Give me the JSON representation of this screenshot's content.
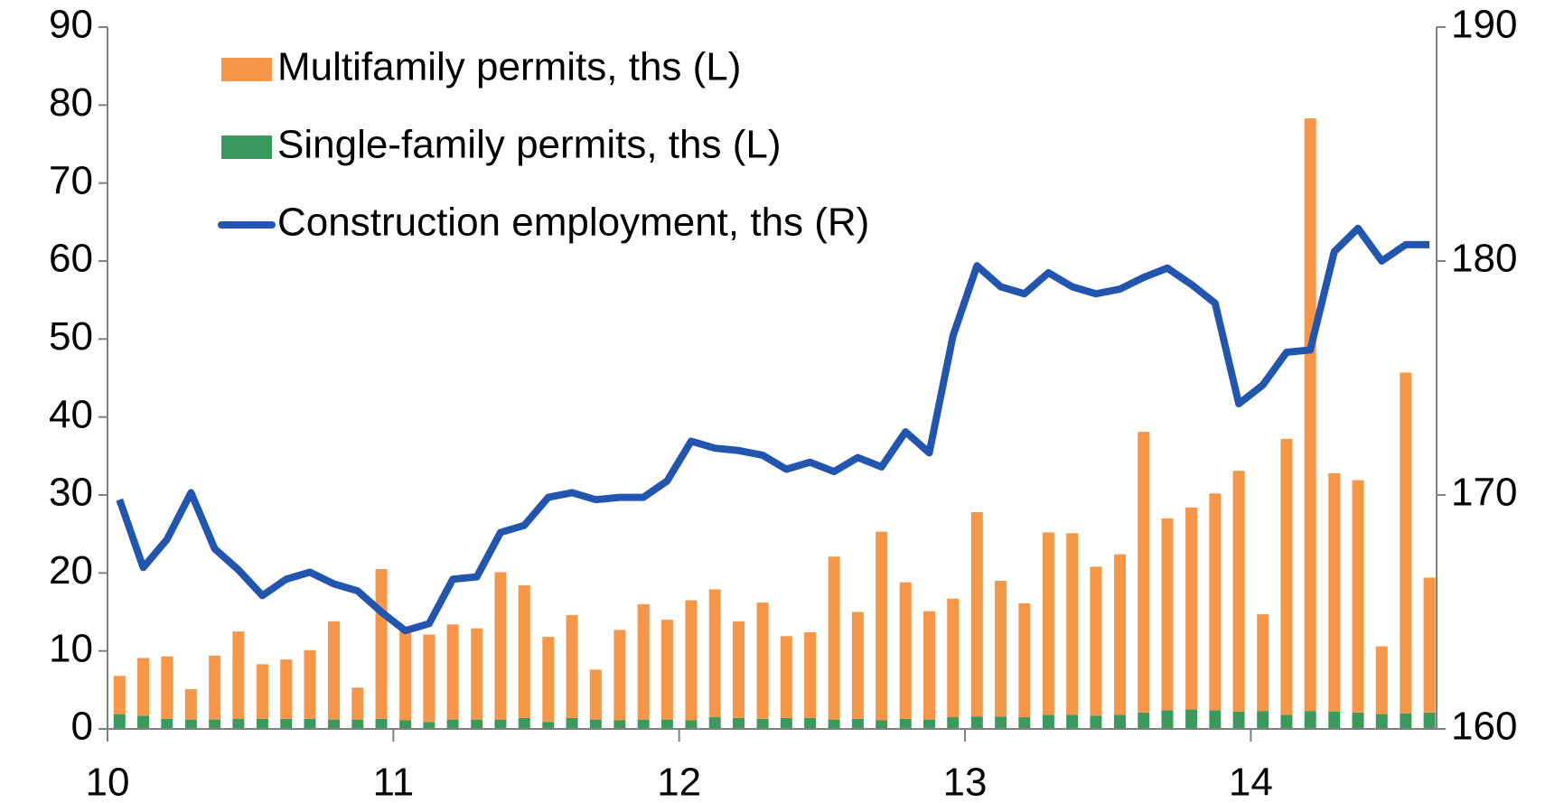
{
  "chart_data": {
    "type": "bar-line",
    "x": [
      10.042,
      10.125,
      10.208,
      10.292,
      10.375,
      10.458,
      10.542,
      10.625,
      10.708,
      10.792,
      10.875,
      10.958,
      11.042,
      11.125,
      11.208,
      11.292,
      11.375,
      11.458,
      11.542,
      11.625,
      11.708,
      11.792,
      11.875,
      11.958,
      12.042,
      12.125,
      12.208,
      12.292,
      12.375,
      12.458,
      12.542,
      12.625,
      12.708,
      12.792,
      12.875,
      12.958,
      13.042,
      13.125,
      13.208,
      13.292,
      13.375,
      13.458,
      13.542,
      13.625,
      13.708,
      13.792,
      13.875,
      13.958,
      14.042,
      14.125,
      14.208,
      14.292,
      14.375,
      14.458,
      14.542,
      14.625
    ],
    "series": [
      {
        "name": "Multifamily permits, ths (L)",
        "color": "#F79646",
        "stack": true,
        "values": [
          4.9,
          7.4,
          8.0,
          3.9,
          8.2,
          11.2,
          7.0,
          7.6,
          8.8,
          12.6,
          4.1,
          19.2,
          11.4,
          11.2,
          12.2,
          11.7,
          18.9,
          17.0,
          10.9,
          13.2,
          6.4,
          11.6,
          14.8,
          12.8,
          15.4,
          16.4,
          12.4,
          14.9,
          10.5,
          11.0,
          20.9,
          13.7,
          24.2,
          17.5,
          13.9,
          15.2,
          26.2,
          17.4,
          14.6,
          23.4,
          23.3,
          19.1,
          20.6,
          36.0,
          24.6,
          25.9,
          27.8,
          30.9,
          12.4,
          35.4,
          76.0,
          30.6,
          29.8,
          8.7,
          43.7,
          17.3
        ]
      },
      {
        "name": "Single-family permits, ths (L)",
        "color": "#3A9A5E",
        "stack": true,
        "values": [
          1.9,
          1.7,
          1.3,
          1.2,
          1.2,
          1.3,
          1.3,
          1.3,
          1.3,
          1.2,
          1.2,
          1.3,
          1.1,
          0.9,
          1.2,
          1.2,
          1.2,
          1.4,
          0.9,
          1.4,
          1.2,
          1.1,
          1.2,
          1.2,
          1.1,
          1.5,
          1.4,
          1.3,
          1.4,
          1.4,
          1.2,
          1.3,
          1.1,
          1.3,
          1.2,
          1.5,
          1.6,
          1.6,
          1.5,
          1.8,
          1.8,
          1.7,
          1.8,
          2.1,
          2.4,
          2.5,
          2.4,
          2.2,
          2.3,
          1.8,
          2.3,
          2.2,
          2.1,
          1.9,
          2.0,
          2.1
        ]
      },
      {
        "name": "Construction employment, ths (R)",
        "color": "#2255B0",
        "axis": "y2",
        "line": true,
        "values": [
          169.8,
          166.9,
          168.1,
          170.1,
          167.7,
          166.8,
          165.7,
          166.4,
          166.7,
          166.2,
          165.9,
          165.0,
          164.2,
          164.5,
          166.4,
          166.5,
          168.4,
          168.7,
          169.9,
          170.1,
          169.8,
          169.9,
          169.9,
          170.6,
          172.3,
          172.0,
          171.9,
          171.7,
          171.1,
          171.4,
          171.0,
          171.6,
          171.2,
          172.7,
          171.8,
          176.8,
          179.8,
          178.9,
          178.6,
          179.5,
          178.9,
          178.6,
          178.8,
          179.3,
          179.7,
          179.0,
          178.2,
          173.9,
          174.7,
          176.1,
          176.2,
          180.4,
          181.4,
          180.0,
          180.7,
          180.7
        ]
      }
    ],
    "xlim": [
      10,
      14.65
    ],
    "xticks": [
      10,
      11,
      12,
      13,
      14
    ],
    "ylim": [
      0,
      90
    ],
    "yticks": [
      0,
      10,
      20,
      30,
      40,
      50,
      60,
      70,
      80,
      90
    ],
    "y2lim": [
      160,
      190
    ],
    "y2ticks": [
      160,
      170,
      180,
      190
    ],
    "legend": "upper left",
    "grid": false
  }
}
